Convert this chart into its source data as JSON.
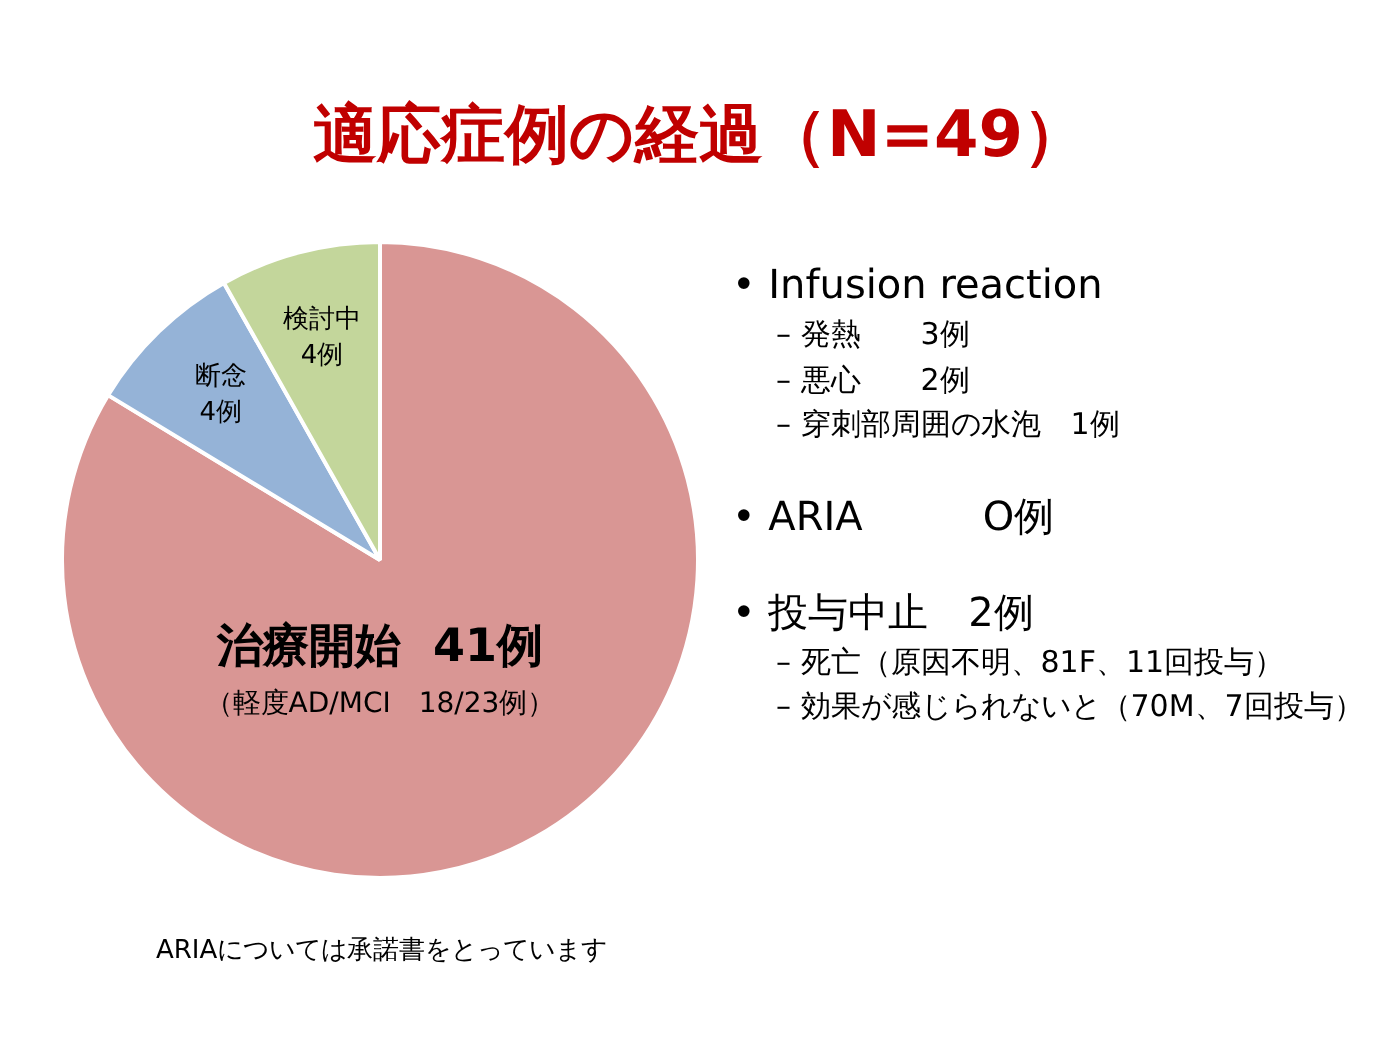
{
  "chart_data": {
    "type": "pie",
    "title": "適応症例の経過（N=49）",
    "categories": [
      "治療開始",
      "断念",
      "検討中"
    ],
    "values": [
      41,
      4,
      4
    ],
    "value_labels": [
      "41例",
      "4例",
      "4例"
    ],
    "colors": [
      "#d99694",
      "#95b3d7",
      "#c3d69b"
    ],
    "legend": false,
    "annotations": [
      "（軽度AD/MCI　18/23例）",
      "• Infusion reaction",
      "– 発熱　　3例",
      "– 悪心　　2例",
      "– 穿刺部周囲の水泡　1例",
      "• ARIA　　　O例",
      "• 投与中止　2例",
      "– 死亡（原因不明、81F、11回投与）",
      "– 効果が感じられないと（70M、7回投与）",
      "ARIAについては承諾書をとっています"
    ]
  }
}
